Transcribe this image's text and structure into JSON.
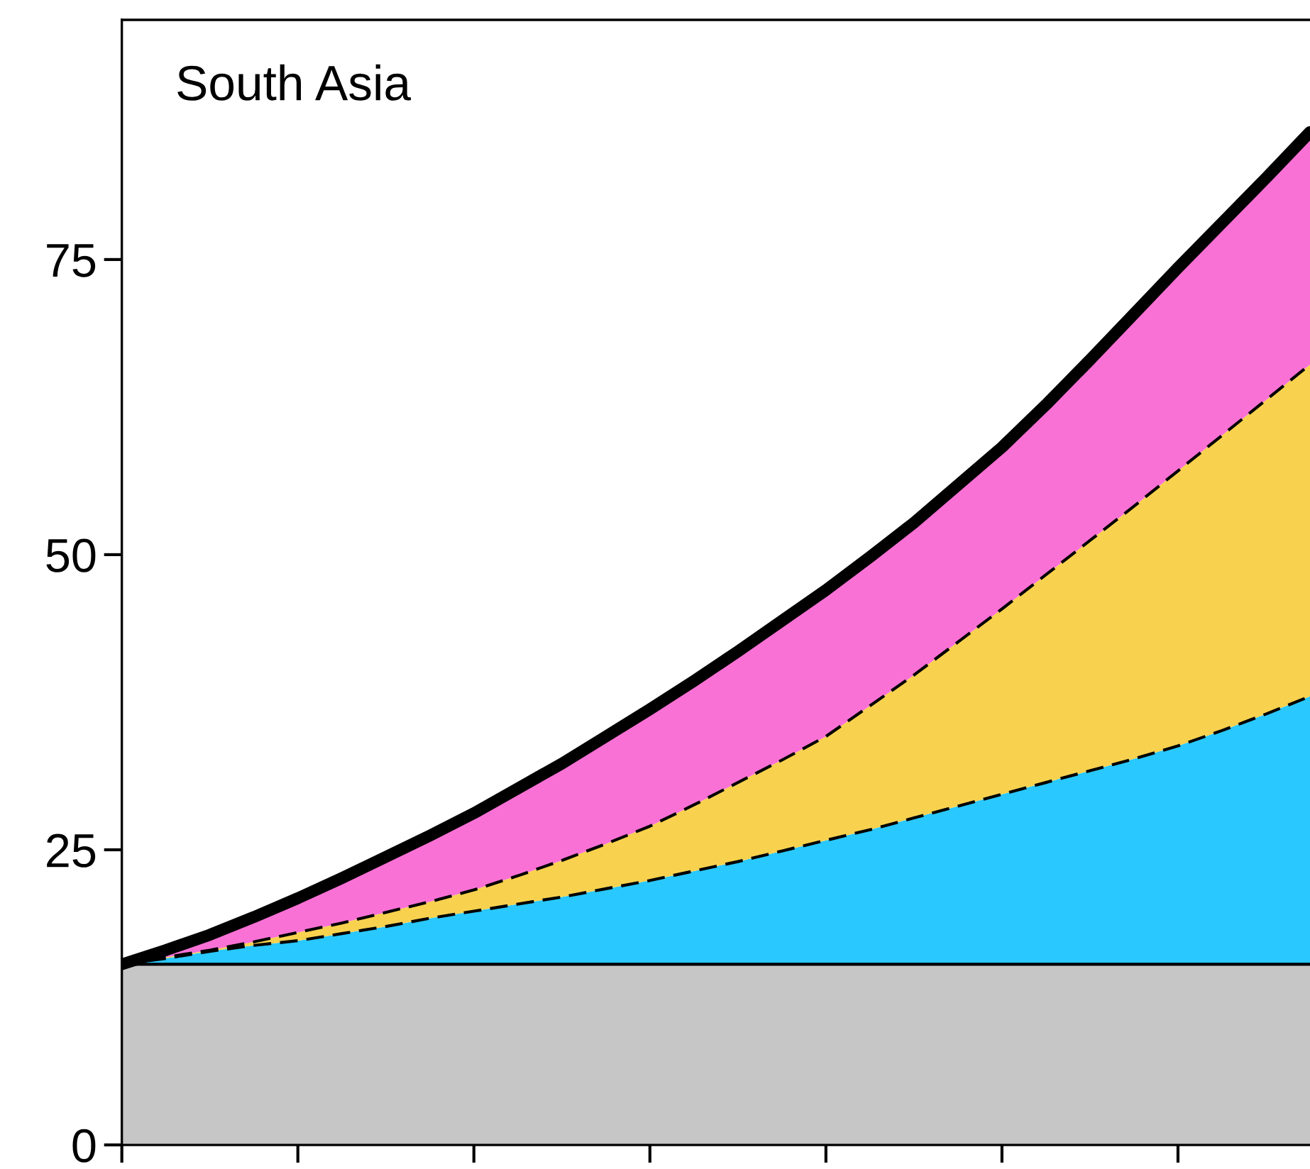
{
  "chart_data": {
    "type": "area",
    "title": "South Asia",
    "stacked": true,
    "categories": [
      null,
      null,
      null,
      null,
      null,
      null,
      null,
      null,
      null,
      null,
      null,
      null,
      null,
      null,
      null,
      null,
      null,
      null,
      null,
      null,
      null,
      null,
      null,
      null,
      null,
      null,
      null,
      null
    ],
    "series": [
      {
        "color": "#c6c6c6",
        "line_style": "solid",
        "values": [
          15.3,
          15.3,
          15.3,
          15.3,
          15.3,
          15.3,
          15.3,
          15.3,
          15.3,
          15.3,
          15.3,
          15.3,
          15.3,
          15.3,
          15.3,
          15.3,
          15.3,
          15.3,
          15.3,
          15.3,
          15.3,
          15.3,
          15.3,
          15.3,
          15.3,
          15.3,
          15.3,
          15.3
        ]
      },
      {
        "color": "#29c8fe",
        "line_style": "dashed",
        "values": [
          0,
          0.5,
          1.1,
          1.6,
          2.0,
          2.6,
          3.2,
          3.9,
          4.5,
          5.1,
          5.7,
          6.4,
          7.1,
          7.9,
          8.7,
          9.6,
          10.5,
          11.4,
          12.4,
          13.4,
          14.4,
          15.4,
          16.4,
          17.4,
          18.5,
          19.8,
          21.2,
          22.7
        ]
      },
      {
        "color": "#f8d24e",
        "line_style": "dashed",
        "values": [
          0,
          0.1,
          0.1,
          0.3,
          0.7,
          0.9,
          1.2,
          1.4,
          1.8,
          2.4,
          3.1,
          3.8,
          4.6,
          5.6,
          6.7,
          7.7,
          8.8,
          10.5,
          12.1,
          13.9,
          15.7,
          17.6,
          19.5,
          21.4,
          23.3,
          25.0,
          26.6,
          28.1
        ]
      },
      {
        "color": "#fa71d6",
        "line_style": "solid",
        "values": [
          0,
          0.6,
          1.3,
          2.1,
          2.9,
          3.8,
          4.7,
          5.6,
          6.5,
          7.4,
          8.2,
          9.1,
          9.9,
          10.5,
          11.1,
          11.8,
          12.4,
          12.6,
          12.9,
          13.3,
          13.7,
          14.4,
          15.3,
          16.3,
          17.2,
          18.0,
          18.8,
          19.7
        ]
      }
    ],
    "ylim": [
      0,
      95.3
    ],
    "yticks": [
      0,
      25,
      50,
      75
    ],
    "tick_labels": "y",
    "grid": false,
    "legend": false
  }
}
